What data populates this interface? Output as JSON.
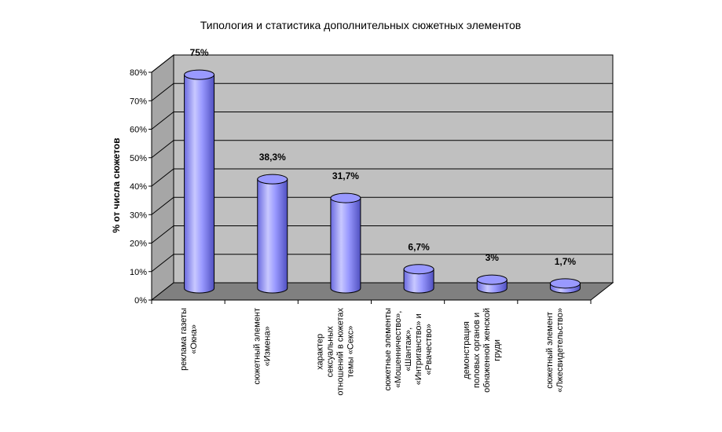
{
  "chart_data": {
    "type": "bar",
    "style": "3d-cylinder",
    "title": "Типология и статистика дополнительных сюжетных элементов",
    "ylabel": "% от числа сюжетов",
    "xlabel": "",
    "ylim": [
      0,
      80
    ],
    "yticks": [
      "0%",
      "10%",
      "20%",
      "30%",
      "40%",
      "50%",
      "60%",
      "70%",
      "80%"
    ],
    "grid": true,
    "categories": [
      [
        "реклама газеты",
        "«Окна»"
      ],
      [
        "сюжетный элемент",
        "«Измена»"
      ],
      [
        "характер",
        "сексуальных",
        "отношений в сюжетах",
        "темы «Секс»"
      ],
      [
        "сюжетные элементы",
        "«Мошенничество»,",
        "«Шантаж»,",
        "«Интриганство» и",
        "«Рвачество»"
      ],
      [
        "демонстрация",
        "половых органов и",
        "обнаженной женской",
        "груди"
      ],
      [
        "сюжетный элемент",
        "«Лжесвидетельство»"
      ]
    ],
    "values": [
      75,
      38.3,
      31.7,
      6.7,
      3,
      1.7
    ],
    "data_labels": [
      "75%",
      "38,3%",
      "31,7%",
      "6,7%",
      "3%",
      "1,7%"
    ],
    "colors": {
      "bar": "#9999ff",
      "bar_dark": "#5a5ad0",
      "bar_light": "#d8d8ff",
      "wall": "#c0c0c0",
      "floor": "#808080"
    }
  }
}
